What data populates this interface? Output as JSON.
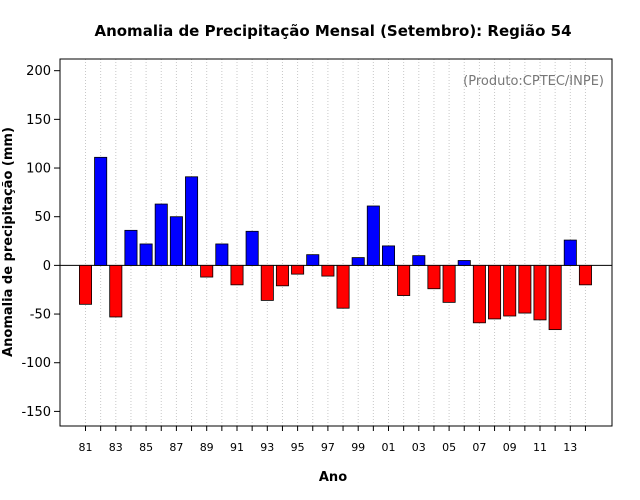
{
  "chart_data": {
    "type": "bar",
    "title": "Anomalia de Precipitação Mensal (Setembro): Região 54",
    "source_note": "(Produto:CPTEC/INPE)",
    "xlabel": "Ano",
    "ylabel": "Anomalia de precipitação (mm)",
    "ylim": [
      -165,
      212
    ],
    "yticks": [
      -150,
      -100,
      -50,
      0,
      50,
      100,
      150,
      200
    ],
    "grid": "vertical dotted",
    "colors": {
      "positive": "#0000ff",
      "negative": "#ff0000",
      "grid": "#c8c8c8"
    },
    "categories": [
      "81",
      "82",
      "83",
      "84",
      "85",
      "86",
      "87",
      "88",
      "89",
      "90",
      "91",
      "92",
      "93",
      "94",
      "95",
      "96",
      "97",
      "98",
      "99",
      "00",
      "01",
      "02",
      "03",
      "04",
      "05",
      "06",
      "07",
      "08",
      "09",
      "10",
      "11",
      "12",
      "13",
      "14"
    ],
    "x_tick_labels": [
      "81",
      "83",
      "85",
      "87",
      "89",
      "91",
      "93",
      "95",
      "97",
      "99",
      "01",
      "03",
      "05",
      "07",
      "09",
      "11",
      "13"
    ],
    "values": [
      -40,
      111,
      -53,
      36,
      22,
      63,
      50,
      91,
      -12,
      22,
      -20,
      35,
      -36,
      -21,
      -9,
      11,
      -11,
      -44,
      8,
      61,
      20,
      -31,
      10,
      -24,
      -38,
      5,
      -59,
      -55,
      -52,
      -49,
      -56,
      -66,
      26,
      -20
    ]
  }
}
